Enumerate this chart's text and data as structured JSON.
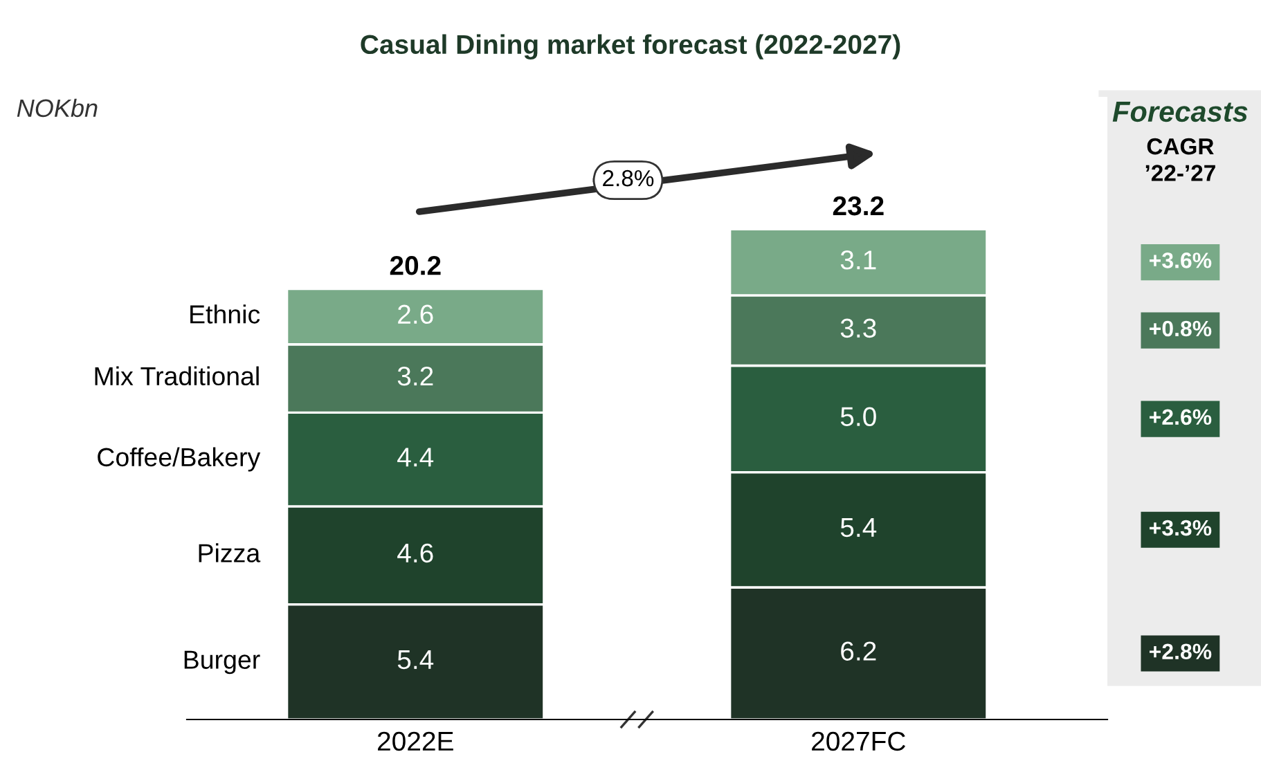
{
  "chart_data": {
    "type": "bar",
    "title": "Casual Dining market forecast (2022-2027)",
    "categories": [
      "2022E",
      "2027FC"
    ],
    "stacked": true,
    "totals": [
      "20.2",
      "23.2"
    ],
    "series": [
      {
        "name": "Burger",
        "color": "#1f3326",
        "values": [
          5.4,
          6.2
        ],
        "value_labels": [
          "5.4",
          "6.2"
        ]
      },
      {
        "name": "Pizza",
        "color": "#1f432c",
        "values": [
          4.6,
          5.4
        ],
        "value_labels": [
          "4.6",
          "5.4"
        ]
      },
      {
        "name": "Coffee/Bakery",
        "color": "#2a5e3f",
        "values": [
          4.4,
          5.0
        ],
        "value_labels": [
          "4.4",
          "5.0"
        ]
      },
      {
        "name": "Mix Traditional",
        "color": "#4b785a",
        "values": [
          3.2,
          3.3
        ],
        "value_labels": [
          "3.2",
          "3.3"
        ]
      },
      {
        "name": "Ethnic",
        "color": "#79aa88",
        "values": [
          2.6,
          3.1
        ],
        "value_labels": [
          "2.6",
          "3.1"
        ]
      }
    ],
    "annotations": [
      "NOKbn",
      "2.8%",
      "Forecasts",
      "CAGR",
      "’22-’27",
      "+2.8%",
      "+3.3%",
      "+2.6%",
      "+0.8%",
      "+3.6%"
    ],
    "grid": false,
    "legend": false
  }
}
